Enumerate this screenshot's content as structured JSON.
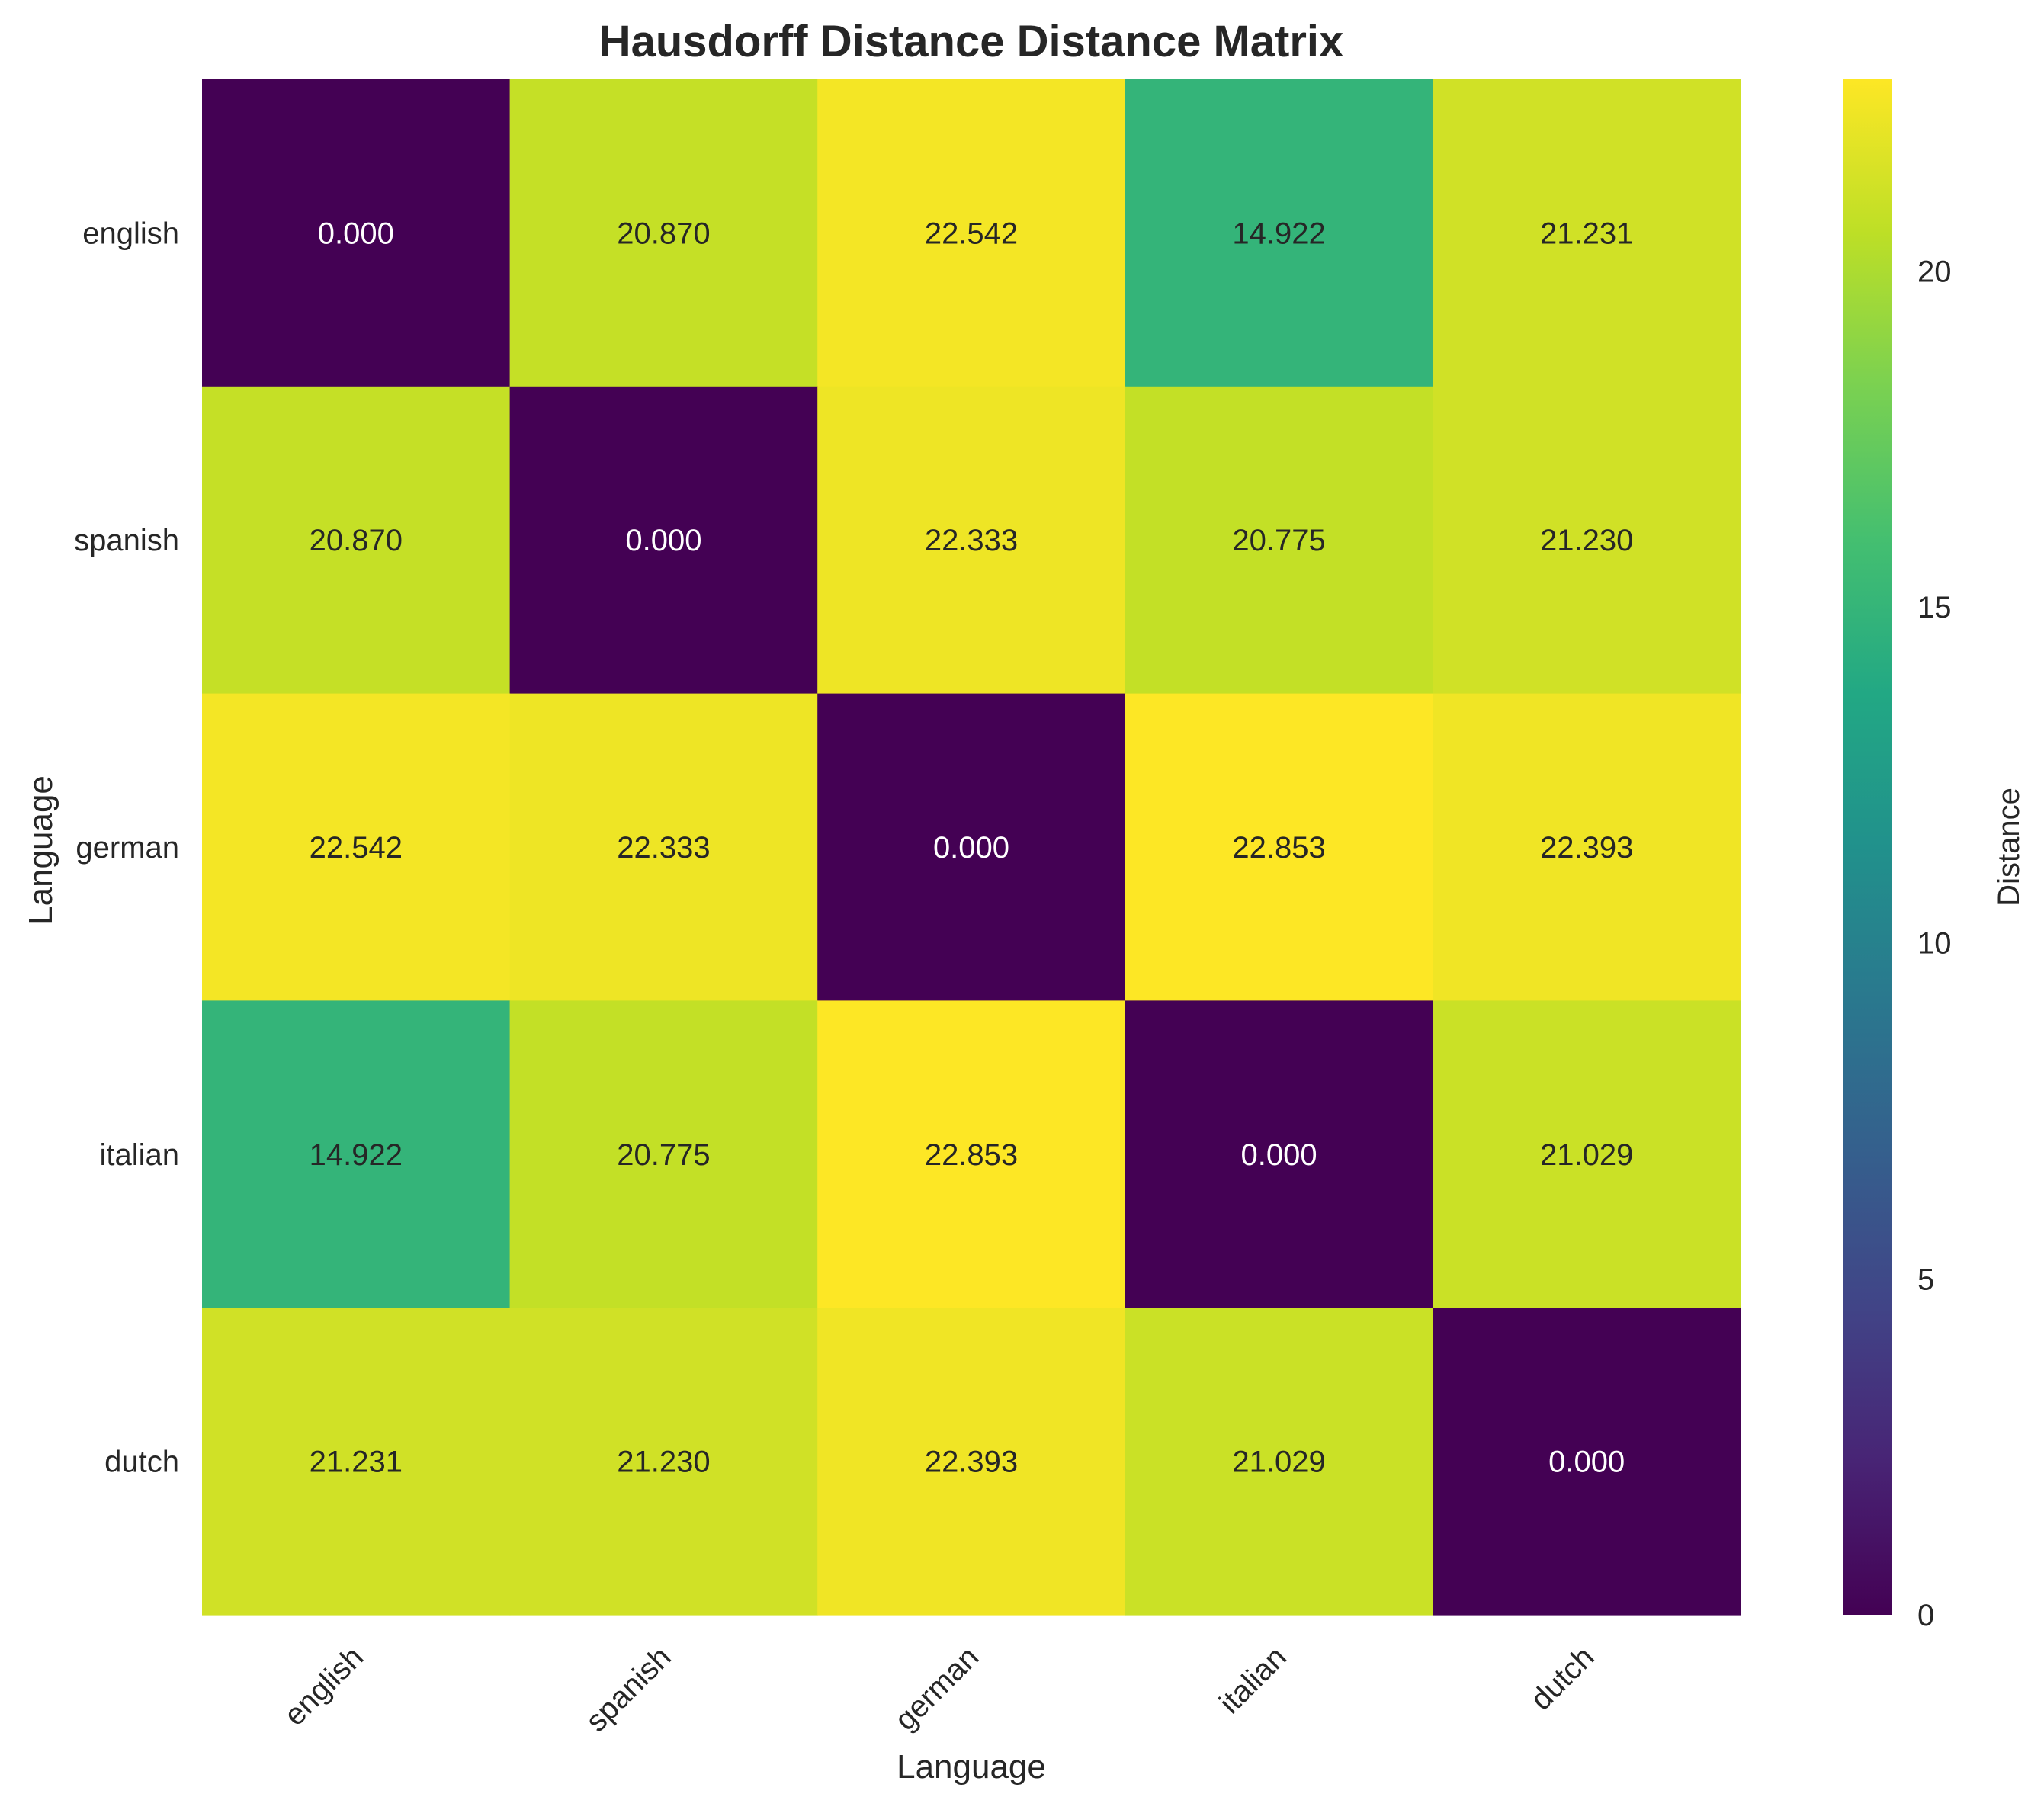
{
  "chart_data": {
    "type": "heatmap",
    "title": "Hausdorff Distance Distance Matrix",
    "xlabel": "Language",
    "ylabel": "Language",
    "x_categories": [
      "english",
      "spanish",
      "german",
      "italian",
      "dutch"
    ],
    "y_categories": [
      "english",
      "spanish",
      "german",
      "italian",
      "dutch"
    ],
    "values": [
      [
        0.0,
        20.87,
        22.542,
        14.922,
        21.231
      ],
      [
        20.87,
        0.0,
        22.333,
        20.775,
        21.23
      ],
      [
        22.542,
        22.333,
        0.0,
        22.853,
        22.393
      ],
      [
        14.922,
        20.775,
        22.853,
        0.0,
        21.029
      ],
      [
        21.231,
        21.23,
        22.393,
        21.029,
        0.0
      ]
    ],
    "value_format": "0.000",
    "colormap": "viridis",
    "vmin": 0,
    "vmax": 22.853,
    "colorbar": {
      "label": "Distance",
      "ticks": [
        0,
        5,
        10,
        15,
        20
      ]
    },
    "grid": false,
    "legend": "colorbar-right"
  }
}
